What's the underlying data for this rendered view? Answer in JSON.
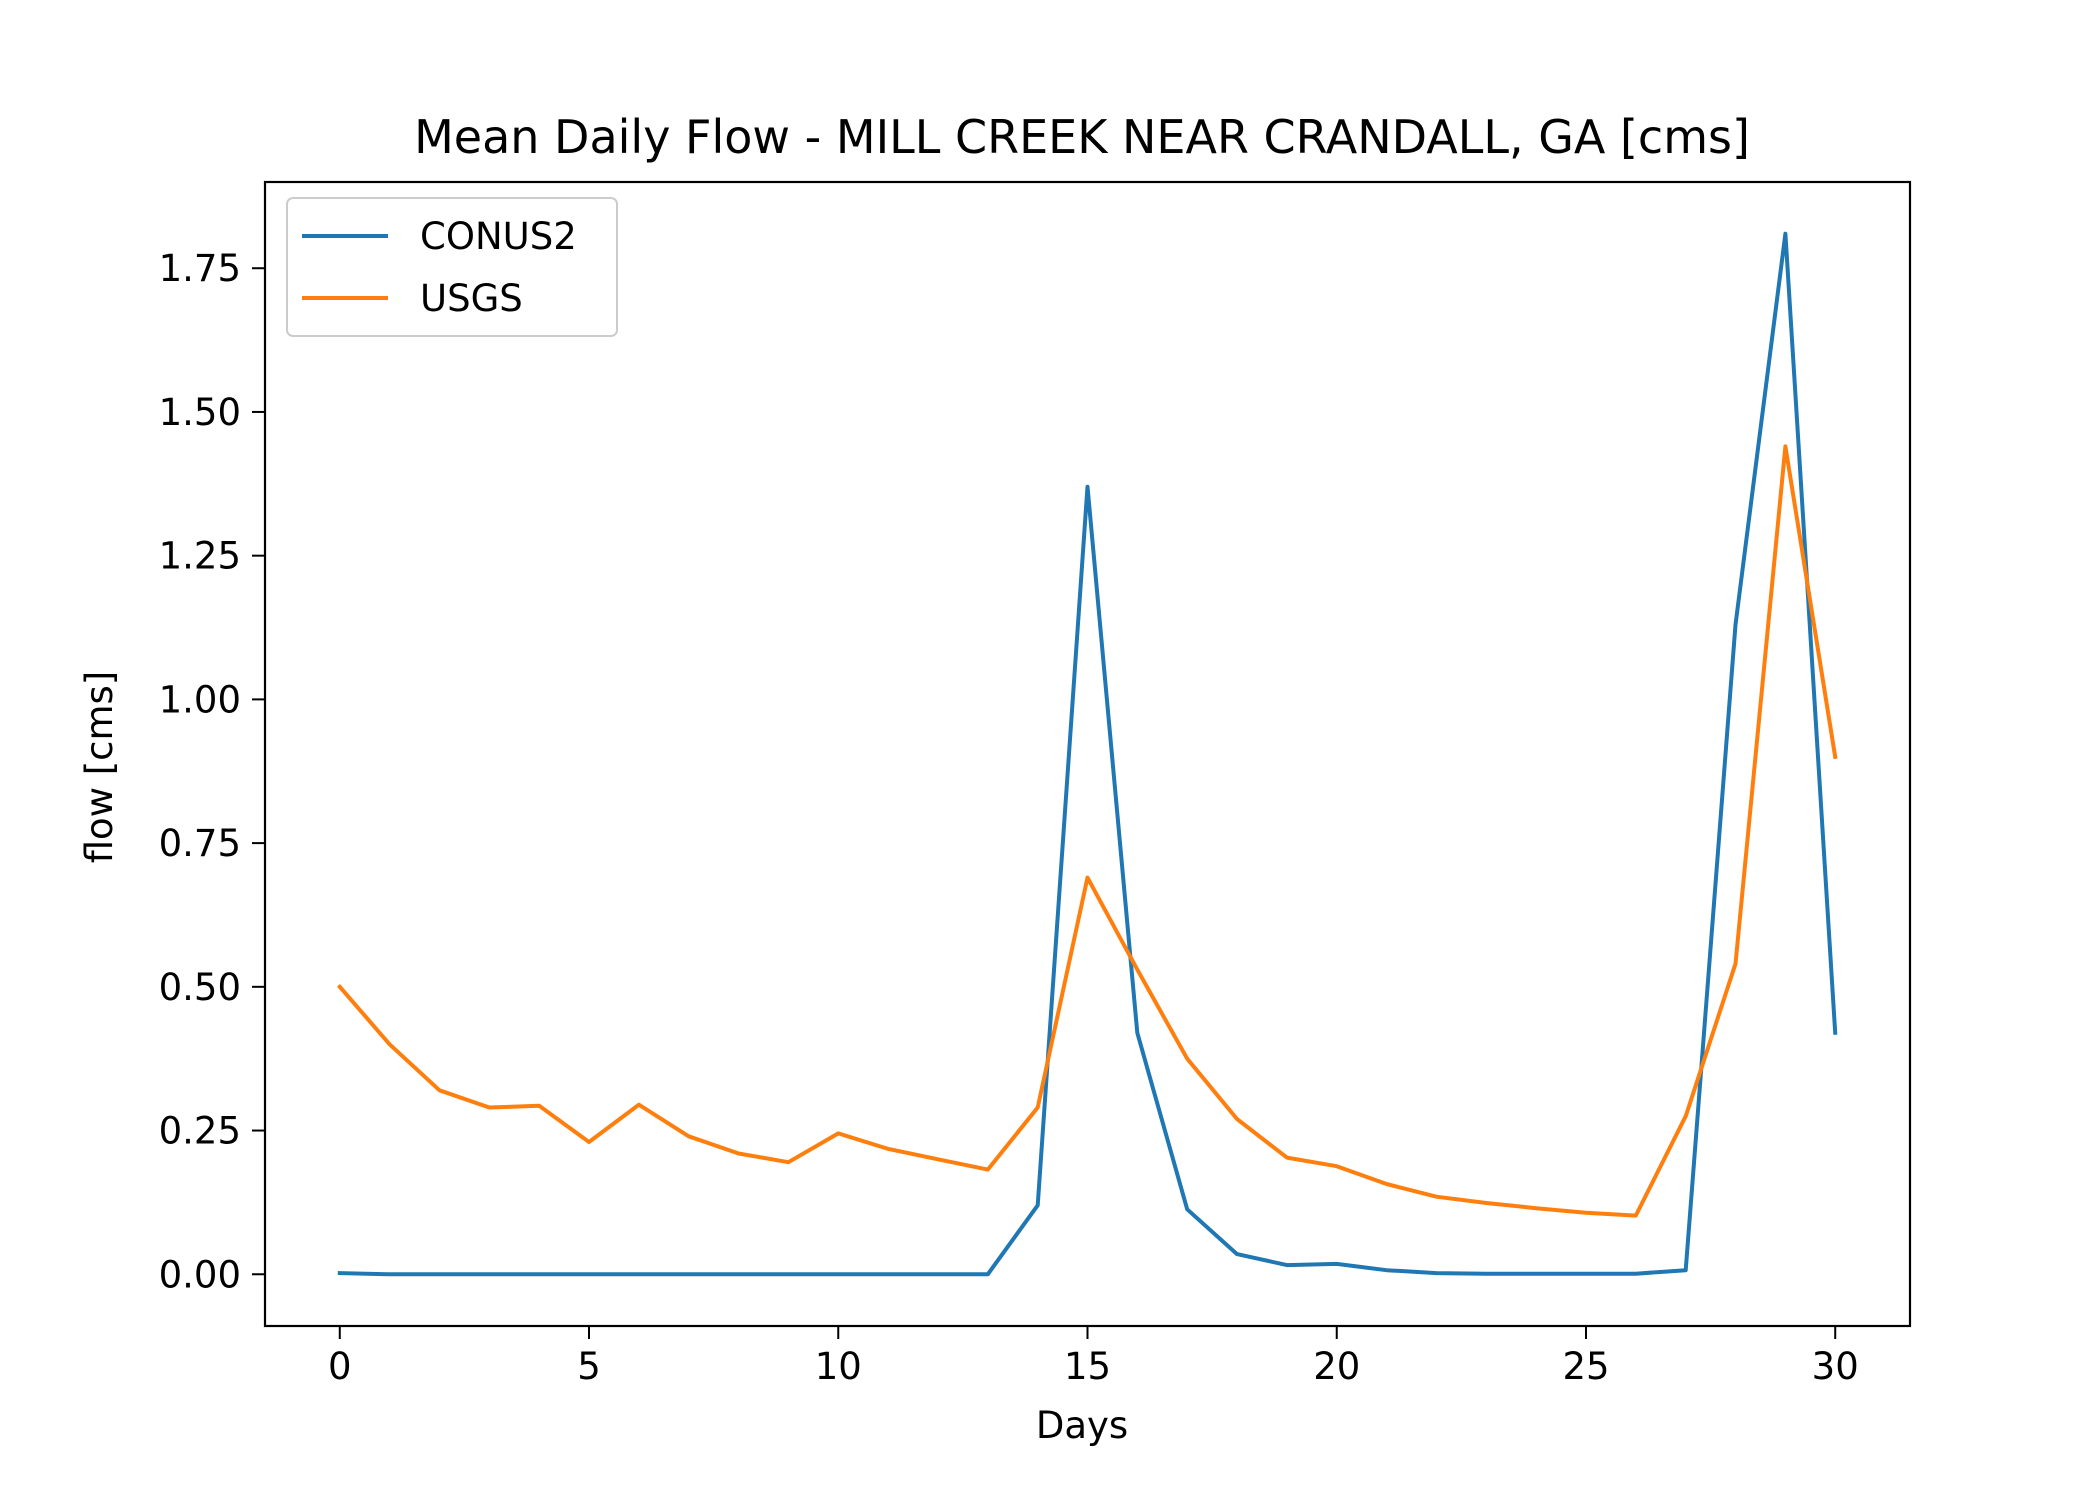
{
  "chart_data": {
    "type": "line",
    "title": "Mean Daily Flow - MILL CREEK NEAR CRANDALL, GA [cms]",
    "xlabel": "Days",
    "ylabel": "flow [cms]",
    "xlim": [
      -1.5,
      31.5
    ],
    "ylim": [
      -0.09,
      1.9
    ],
    "xticks": [
      0,
      5,
      10,
      15,
      20,
      25,
      30
    ],
    "yticks": [
      0.0,
      0.25,
      0.5,
      0.75,
      1.0,
      1.25,
      1.5,
      1.75
    ],
    "ytick_labels": [
      "0.00",
      "0.25",
      "0.50",
      "0.75",
      "1.00",
      "1.25",
      "1.50",
      "1.75"
    ],
    "grid": false,
    "legend_position": "upper-left",
    "x": [
      0,
      1,
      2,
      3,
      4,
      5,
      6,
      7,
      8,
      9,
      10,
      11,
      12,
      13,
      14,
      15,
      16,
      17,
      18,
      19,
      20,
      21,
      22,
      23,
      24,
      25,
      26,
      27,
      28,
      29,
      30
    ],
    "series": [
      {
        "name": "CONUS2",
        "color": "#1f77b4",
        "values": [
          0.002,
          0.0,
          0.0,
          0.0,
          0.0,
          0.0,
          0.0,
          0.0,
          0.0,
          0.0,
          0.0,
          0.0,
          0.0,
          0.0,
          0.12,
          1.37,
          0.42,
          0.113,
          0.035,
          0.016,
          0.018,
          0.007,
          0.002,
          0.001,
          0.001,
          0.001,
          0.001,
          0.007,
          1.13,
          1.81,
          0.42
        ]
      },
      {
        "name": "USGS",
        "color": "#ff7f0e",
        "values": [
          0.5,
          0.4,
          0.32,
          0.29,
          0.293,
          0.23,
          0.295,
          0.24,
          0.21,
          0.195,
          0.245,
          0.218,
          0.2,
          0.182,
          0.29,
          0.69,
          0.53,
          0.375,
          0.27,
          0.203,
          0.188,
          0.157,
          0.135,
          0.124,
          0.115,
          0.107,
          0.102,
          0.275,
          0.54,
          1.44,
          0.9
        ]
      }
    ]
  }
}
